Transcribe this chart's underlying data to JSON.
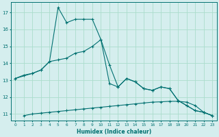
{
  "xlabel": "Humidex (Indice chaleur)",
  "background_color": "#d5eeee",
  "grid_color": "#aaddcc",
  "line_color": "#007070",
  "xlim": [
    -0.5,
    23.5
  ],
  "ylim": [
    10.6,
    17.6
  ],
  "yticks": [
    11,
    12,
    13,
    14,
    15,
    16,
    17
  ],
  "xticks": [
    0,
    1,
    2,
    3,
    4,
    5,
    6,
    7,
    8,
    9,
    10,
    11,
    12,
    13,
    14,
    15,
    16,
    17,
    18,
    19,
    20,
    21,
    22,
    23
  ],
  "series1_x": [
    0,
    1,
    2,
    3,
    4,
    5,
    6,
    7,
    8,
    9,
    10,
    11,
    12,
    13,
    14,
    15,
    16,
    17,
    18,
    19,
    20,
    21,
    22,
    23
  ],
  "series1_y": [
    13.1,
    13.3,
    13.4,
    13.6,
    14.1,
    14.2,
    14.3,
    14.6,
    14.7,
    15.0,
    15.4,
    12.8,
    12.6,
    13.1,
    12.9,
    12.5,
    12.4,
    12.6,
    12.5,
    11.8,
    11.5,
    11.2,
    11.1,
    10.9
  ],
  "series2_x": [
    0,
    2,
    3,
    4,
    5,
    6,
    7,
    8,
    9,
    10,
    11,
    12,
    13,
    14,
    15,
    16,
    17,
    18,
    19,
    20,
    21,
    22,
    23
  ],
  "series2_y": [
    13.1,
    13.4,
    13.6,
    14.1,
    17.3,
    16.4,
    16.6,
    16.6,
    16.6,
    15.4,
    13.9,
    12.6,
    13.1,
    12.9,
    12.5,
    12.4,
    12.6,
    12.5,
    11.8,
    11.5,
    11.2,
    11.1,
    10.9
  ],
  "series3_x": [
    1,
    2,
    3,
    4,
    5,
    6,
    7,
    8,
    9,
    10,
    11,
    12,
    13,
    14,
    15,
    16,
    17,
    18,
    19,
    20,
    21,
    22,
    23
  ],
  "series3_y": [
    10.9,
    11.0,
    11.05,
    11.1,
    11.15,
    11.2,
    11.25,
    11.3,
    11.35,
    11.4,
    11.45,
    11.5,
    11.55,
    11.6,
    11.65,
    11.7,
    11.72,
    11.75,
    11.75,
    11.7,
    11.5,
    11.1,
    10.9
  ]
}
